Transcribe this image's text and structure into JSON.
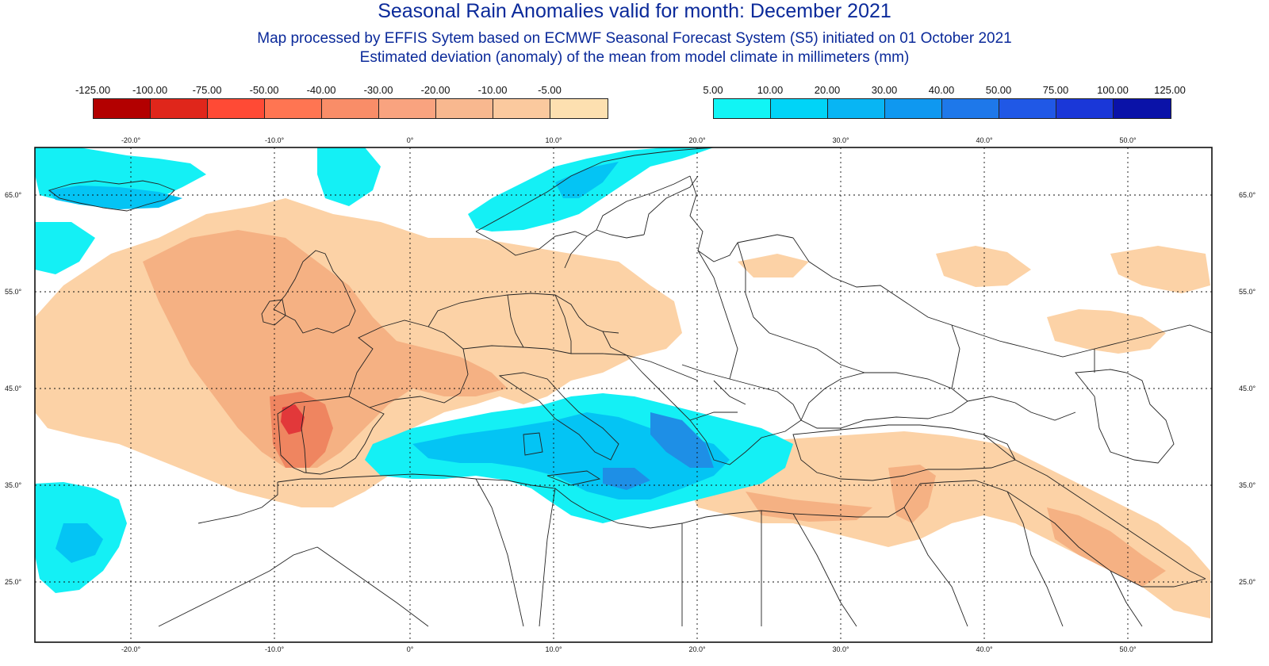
{
  "title": "Seasonal Rain Anomalies valid for month: December 2021",
  "subtitle1": "Map processed by EFFIS Sytem based on ECMWF Seasonal Forecast System (S5) initiated on 01 October 2021",
  "subtitle2": "Estimated deviation (anomaly) of the mean from model climate in millimeters (mm)",
  "negative_scale": {
    "labels": [
      "-125.00",
      "-100.00",
      "-75.00",
      "-50.00",
      "-40.00",
      "-30.00",
      "-20.00",
      "-10.00",
      "-5.00"
    ],
    "colors": [
      "#b30000",
      "#e0261b",
      "#ff4a35",
      "#ff7552",
      "#f98d68",
      "#f9a37f",
      "#f8b88f",
      "#fbc99e",
      "#fde0b0"
    ]
  },
  "positive_scale": {
    "labels": [
      "5.00",
      "10.00",
      "20.00",
      "30.00",
      "40.00",
      "50.00",
      "75.00",
      "100.00",
      "125.00"
    ],
    "colors": [
      "#11f5f5",
      "#00d4f7",
      "#08b5f4",
      "#0f98f0",
      "#1e78ea",
      "#2058e6",
      "#1a37d8",
      "#0a12a8"
    ]
  },
  "longitude_labels": [
    "-20.0°",
    "-10.0°",
    "0°",
    "10.0°",
    "20.0°",
    "30.0°",
    "40.0°",
    "50.0°"
  ],
  "latitude_labels": [
    "65.0°",
    "55.0°",
    "45.0°",
    "35.0°",
    "25.0°"
  ],
  "map_colors": {
    "dry_light": "#fcd2a6",
    "dry_mid": "#f5b183",
    "dry_strong": "#ef8560",
    "dry_extreme": "#e2383a",
    "wet_light": "#14f0f5",
    "wet_mid": "#04c4f4",
    "wet_strong": "#1e8fe6",
    "wet_extreme": "#2758c8"
  }
}
